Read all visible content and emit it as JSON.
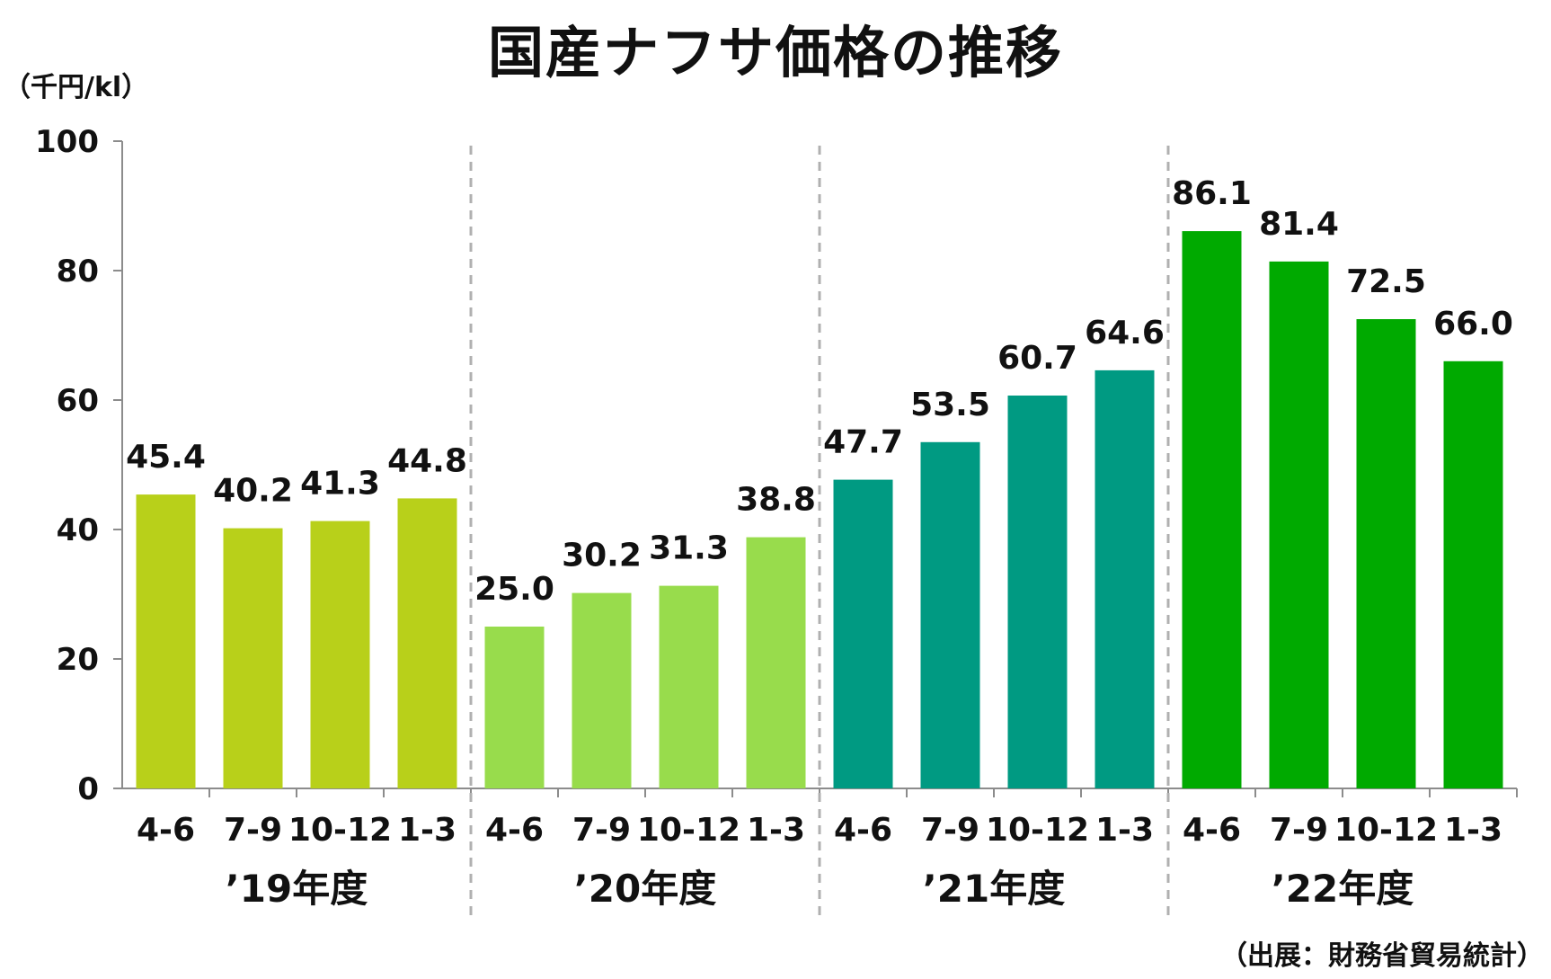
{
  "chart_data": {
    "type": "bar",
    "title": "国産ナフサ価格の推移",
    "unit_label": "（千円/kl）",
    "source": "（出展：財務省貿易統計）",
    "ylim": [
      0,
      100
    ],
    "yticks": [
      "0",
      "20",
      "40",
      "60",
      "80",
      "100"
    ],
    "grid": false,
    "groups": [
      {
        "label": "’19年度",
        "color": "#b8d01a",
        "categories": [
          "4-6",
          "7-9",
          "10-12",
          "1-3"
        ],
        "values": [
          45.4,
          40.2,
          41.3,
          44.8
        ],
        "value_labels": [
          "45.4",
          "40.2",
          "41.3",
          "44.8"
        ]
      },
      {
        "label": "’20年度",
        "color": "#98dc4c",
        "categories": [
          "4-6",
          "7-9",
          "10-12",
          "1-3"
        ],
        "values": [
          25.0,
          30.2,
          31.3,
          38.8
        ],
        "value_labels": [
          "25.0",
          "30.2",
          "31.3",
          "38.8"
        ]
      },
      {
        "label": "’21年度",
        "color": "#009a82",
        "categories": [
          "4-6",
          "7-9",
          "10-12",
          "1-3"
        ],
        "values": [
          47.7,
          53.5,
          60.7,
          64.6
        ],
        "value_labels": [
          "47.7",
          "53.5",
          "60.7",
          "64.6"
        ]
      },
      {
        "label": "’22年度",
        "color": "#00aa00",
        "categories": [
          "4-6",
          "7-9",
          "10-12",
          "1-3"
        ],
        "values": [
          86.1,
          81.4,
          72.5,
          66.0
        ],
        "value_labels": [
          "86.1",
          "81.4",
          "72.5",
          "66.0"
        ]
      }
    ]
  }
}
